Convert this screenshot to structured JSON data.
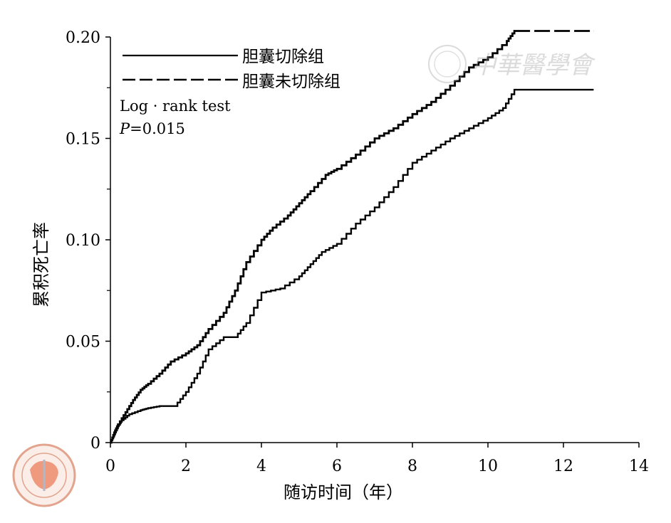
{
  "chart_data": {
    "type": "line",
    "xlabel": "随访时间（年）",
    "ylabel": "累积死亡率",
    "xlim": [
      0,
      14
    ],
    "ylim": [
      0,
      0.2
    ],
    "xticks": [
      0,
      2,
      4,
      6,
      8,
      10,
      12,
      14
    ],
    "xtick_labels": [
      "0",
      "2",
      "4",
      "6",
      "8",
      "10",
      "12",
      "14"
    ],
    "yticks": [
      0,
      0.05,
      0.1,
      0.15,
      0.2
    ],
    "ytick_labels": [
      "0",
      "0.05",
      "0.10",
      "0.15",
      "0.20"
    ],
    "grid": false,
    "legend_position": "top-left",
    "annotations": {
      "test_name": "Log · rank test",
      "p_label": "P",
      "p_value": "=0.015"
    },
    "watermark_text": "中華醫學會",
    "series": [
      {
        "name": "胆囊切除组",
        "style": "solid",
        "x": [
          0,
          0.1,
          0.2,
          0.3,
          0.5,
          0.8,
          1.0,
          1.3,
          1.7,
          2.0,
          2.3,
          2.6,
          3.0,
          3.3,
          3.6,
          4.0,
          4.5,
          5.0,
          5.3,
          5.6,
          6.0,
          6.5,
          7.0,
          7.5,
          8.0,
          8.5,
          9.0,
          9.5,
          10.0,
          10.4,
          10.7,
          12.8
        ],
        "values": [
          0,
          0.004,
          0.008,
          0.011,
          0.014,
          0.016,
          0.017,
          0.018,
          0.018,
          0.025,
          0.034,
          0.046,
          0.052,
          0.052,
          0.059,
          0.074,
          0.076,
          0.082,
          0.088,
          0.094,
          0.098,
          0.108,
          0.116,
          0.126,
          0.138,
          0.144,
          0.15,
          0.155,
          0.16,
          0.165,
          0.174,
          0.174
        ]
      },
      {
        "name": "胆囊未切除组",
        "style": "dashed",
        "x": [
          0,
          0.1,
          0.2,
          0.4,
          0.6,
          0.8,
          1.0,
          1.3,
          1.6,
          2.0,
          2.3,
          2.6,
          3.0,
          3.3,
          3.6,
          4.0,
          4.3,
          4.7,
          5.0,
          5.3,
          5.7,
          6.0,
          6.5,
          7.0,
          7.5,
          8.0,
          8.5,
          9.0,
          9.5,
          10.0,
          10.5,
          10.7,
          12.8
        ],
        "values": [
          0,
          0.005,
          0.009,
          0.015,
          0.021,
          0.026,
          0.029,
          0.034,
          0.04,
          0.044,
          0.048,
          0.056,
          0.064,
          0.075,
          0.089,
          0.1,
          0.106,
          0.112,
          0.118,
          0.124,
          0.132,
          0.135,
          0.142,
          0.15,
          0.155,
          0.162,
          0.168,
          0.176,
          0.185,
          0.19,
          0.198,
          0.203,
          0.203
        ]
      }
    ]
  }
}
